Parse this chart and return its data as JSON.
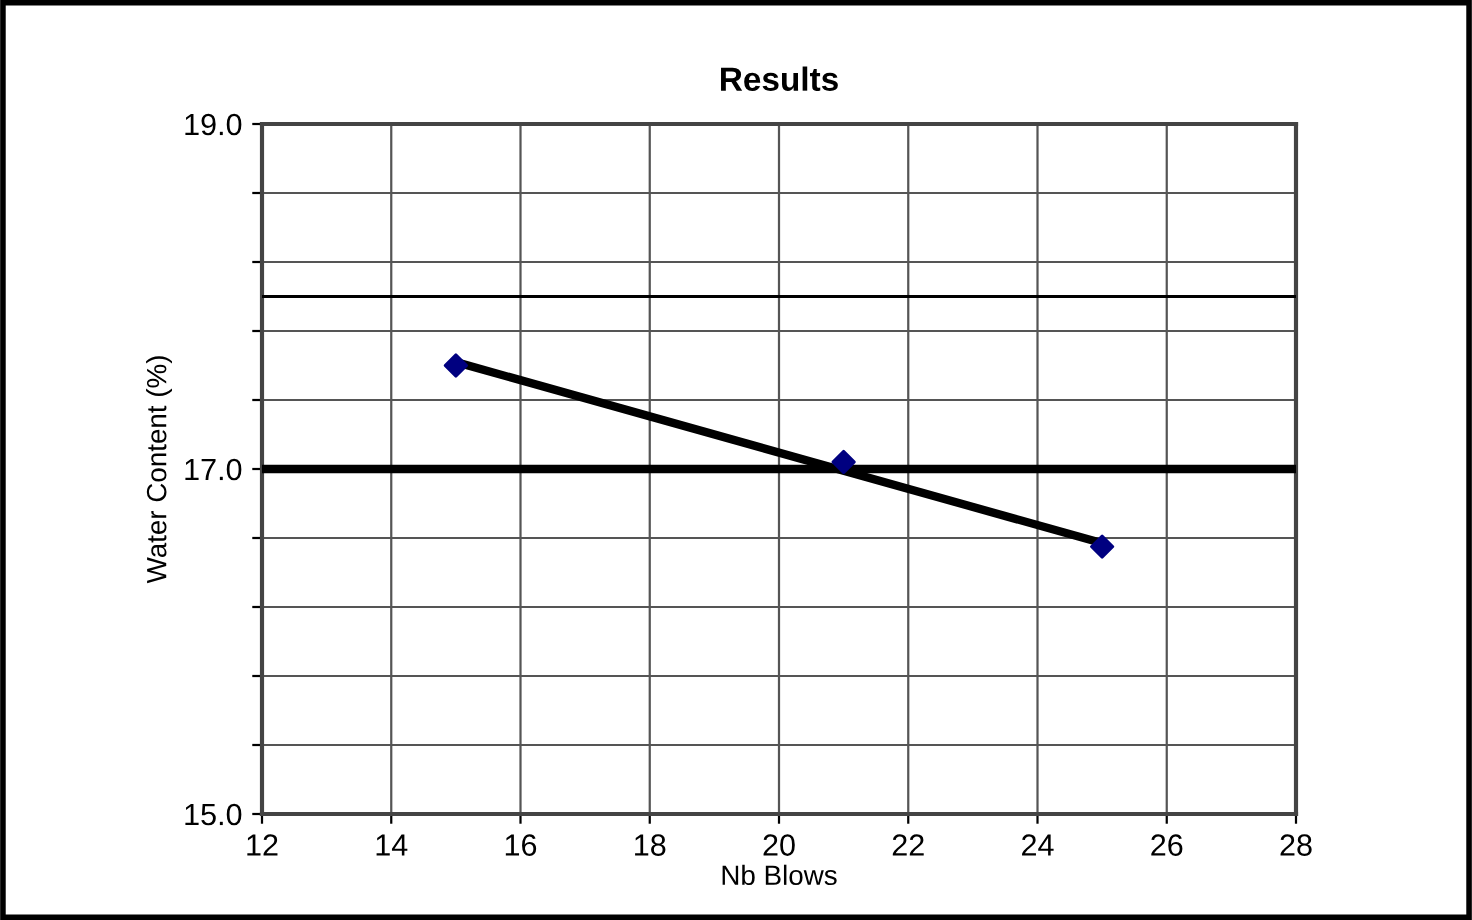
{
  "chart_data": {
    "type": "scatter",
    "title": "Results",
    "xlabel": "Nb Blows",
    "ylabel": "Water Content (%)",
    "x": [
      15,
      21,
      25
    ],
    "series": [
      {
        "color": "#000080",
        "marker": "diamond",
        "values": [
          17.6,
          17.04,
          16.55
        ]
      },
      {
        "type": "line",
        "color": "#000000",
        "marker": "none",
        "x": [
          15,
          25
        ],
        "values": [
          17.62,
          16.57
        ]
      }
    ],
    "xlim": [
      12,
      28
    ],
    "xticks": [
      12,
      14,
      16,
      18,
      20,
      22,
      24,
      26,
      28
    ],
    "ylim": [
      15,
      19
    ],
    "yticks": [
      {
        "value": 15,
        "label": "15.0"
      },
      {
        "value": 15.4,
        "label": null
      },
      {
        "value": 15.8,
        "label": null
      },
      {
        "value": 16.2,
        "label": null
      },
      {
        "value": 16.6,
        "label": null
      },
      {
        "value": 17,
        "label": "17.0"
      },
      {
        "value": 17.4,
        "label": null
      },
      {
        "value": 17.8,
        "label": null
      },
      {
        "value": 18.2,
        "label": null
      },
      {
        "value": 18.6,
        "label": null
      },
      {
        "value": 19,
        "label": "19.0"
      }
    ],
    "ref_lines": [
      {
        "axis": "y",
        "value": 17,
        "color": "#000000",
        "line_style": "solid"
      },
      {
        "axis": "y",
        "value": 18,
        "color": "#000000",
        "line_style": "solid"
      }
    ],
    "grid": true,
    "legend": false
  }
}
